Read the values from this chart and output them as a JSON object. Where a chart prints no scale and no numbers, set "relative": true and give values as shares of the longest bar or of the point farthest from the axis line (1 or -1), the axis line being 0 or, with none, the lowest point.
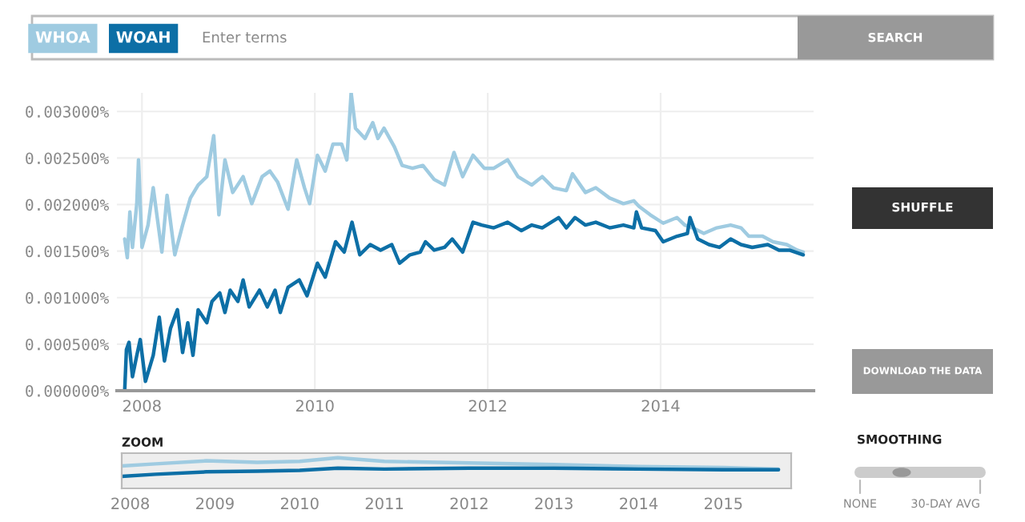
{
  "chart_data": [
    {
      "type": "line",
      "legend": "top left",
      "grid": true,
      "xlim": [
        2007.71,
        2015.77
      ],
      "ylim": [
        0,
        0.0032
      ],
      "xticks": [
        2008,
        2010,
        2012,
        2014
      ],
      "yticks": [
        {
          "value": 0,
          "label": "0.000000%"
        },
        {
          "value": 0.0005,
          "label": "0.000500%"
        },
        {
          "value": 0.001,
          "label": "0.001000%"
        },
        {
          "value": 0.0015,
          "label": "0.001500%"
        },
        {
          "value": 0.002,
          "label": "0.002000%"
        },
        {
          "value": 0.0025,
          "label": "0.002500%"
        },
        {
          "value": 0.003,
          "label": "0.003000%"
        }
      ],
      "annotations": [
        "Enter terms",
        "SEARCH",
        "SHUFFLE",
        "DOWNLOAD THE DATA",
        "SMOOTHING",
        "NONE",
        "30-DAY AVG"
      ],
      "series": [
        {
          "name": "WHOA",
          "color": "#9fcbe1",
          "x": [
            2007.8,
            2007.83,
            2007.86,
            2007.89,
            2007.94,
            2007.96,
            2008.0,
            2008.07,
            2008.13,
            2008.23,
            2008.29,
            2008.38,
            2008.47,
            2008.56,
            2008.65,
            2008.75,
            2008.83,
            2008.89,
            2008.96,
            2009.05,
            2009.17,
            2009.27,
            2009.39,
            2009.48,
            2009.57,
            2009.69,
            2009.79,
            2009.88,
            2009.94,
            2010.03,
            2010.12,
            2010.21,
            2010.31,
            2010.37,
            2010.42,
            2010.47,
            2010.58,
            2010.67,
            2010.73,
            2010.8,
            2010.92,
            2011.01,
            2011.13,
            2011.25,
            2011.38,
            2011.5,
            2011.61,
            2011.71,
            2011.83,
            2011.96,
            2012.07,
            2012.23,
            2012.35,
            2012.51,
            2012.63,
            2012.76,
            2012.91,
            2012.98,
            2013.13,
            2013.25,
            2013.41,
            2013.57,
            2013.69,
            2013.75,
            2013.88,
            2014.03,
            2014.19,
            2014.28,
            2014.37,
            2014.5,
            2014.65,
            2014.81,
            2014.93,
            2015.02,
            2015.18,
            2015.3,
            2015.46,
            2015.58,
            2015.65
          ],
          "values": [
            0.00163,
            0.00143,
            0.00192,
            0.00154,
            0.00201,
            0.00248,
            0.00154,
            0.00178,
            0.00218,
            0.00149,
            0.0021,
            0.00146,
            0.00178,
            0.00207,
            0.00221,
            0.0023,
            0.00274,
            0.00189,
            0.00248,
            0.00213,
            0.0023,
            0.00201,
            0.0023,
            0.00236,
            0.00224,
            0.00195,
            0.00248,
            0.00218,
            0.00201,
            0.00253,
            0.00236,
            0.00265,
            0.00265,
            0.00248,
            0.0032,
            0.00282,
            0.00271,
            0.00288,
            0.00271,
            0.00282,
            0.00262,
            0.00242,
            0.00239,
            0.00242,
            0.00227,
            0.00221,
            0.00256,
            0.0023,
            0.00253,
            0.00239,
            0.00239,
            0.00248,
            0.0023,
            0.00221,
            0.0023,
            0.00218,
            0.00215,
            0.00233,
            0.00213,
            0.00218,
            0.00207,
            0.00201,
            0.00204,
            0.00198,
            0.00189,
            0.0018,
            0.00186,
            0.00178,
            0.00175,
            0.00169,
            0.00175,
            0.00178,
            0.00175,
            0.00166,
            0.00166,
            0.0016,
            0.00157,
            0.00151,
            0.00149
          ]
        },
        {
          "name": "WOAH",
          "color": "#0d6fa6",
          "x": [
            2007.8,
            2007.82,
            2007.85,
            2007.89,
            2007.94,
            2007.98,
            2008.04,
            2008.13,
            2008.2,
            2008.26,
            2008.33,
            2008.41,
            2008.47,
            2008.53,
            2008.59,
            2008.65,
            2008.75,
            2008.81,
            2008.9,
            2008.96,
            2009.02,
            2009.11,
            2009.17,
            2009.24,
            2009.36,
            2009.45,
            2009.54,
            2009.6,
            2009.69,
            2009.82,
            2009.91,
            2010.03,
            2010.12,
            2010.24,
            2010.34,
            2010.43,
            2010.52,
            2010.64,
            2010.76,
            2010.89,
            2010.98,
            2011.1,
            2011.22,
            2011.28,
            2011.38,
            2011.5,
            2011.59,
            2011.71,
            2011.83,
            2011.93,
            2012.07,
            2012.23,
            2012.39,
            2012.51,
            2012.63,
            2012.82,
            2012.91,
            2013.01,
            2013.13,
            2013.25,
            2013.41,
            2013.57,
            2013.69,
            2013.72,
            2013.78,
            2013.94,
            2014.03,
            2014.19,
            2014.31,
            2014.34,
            2014.43,
            2014.56,
            2014.68,
            2014.81,
            2014.93,
            2015.06,
            2015.24,
            2015.37,
            2015.49,
            2015.65
          ],
          "values": [
            0,
            0.00044,
            0.00052,
            0.00015,
            0.00038,
            0.00055,
            0.0001,
            0.00038,
            0.00079,
            0.00032,
            0.00067,
            0.00087,
            0.00041,
            0.00073,
            0.00038,
            0.00087,
            0.00073,
            0.00096,
            0.00105,
            0.00084,
            0.00108,
            0.00096,
            0.00119,
            0.0009,
            0.00108,
            0.0009,
            0.00108,
            0.00084,
            0.00111,
            0.00119,
            0.00102,
            0.00137,
            0.00122,
            0.0016,
            0.00149,
            0.00181,
            0.00146,
            0.00157,
            0.00151,
            0.00157,
            0.00137,
            0.00146,
            0.00149,
            0.0016,
            0.00151,
            0.00154,
            0.00163,
            0.00149,
            0.00181,
            0.00178,
            0.00175,
            0.00181,
            0.00172,
            0.00178,
            0.00175,
            0.00186,
            0.00175,
            0.00186,
            0.00178,
            0.00181,
            0.00175,
            0.00178,
            0.00175,
            0.00192,
            0.00175,
            0.00172,
            0.0016,
            0.00166,
            0.00169,
            0.00186,
            0.00163,
            0.00157,
            0.00154,
            0.00163,
            0.00157,
            0.00154,
            0.00157,
            0.00151,
            0.00151,
            0.00146
          ]
        }
      ]
    },
    {
      "type": "line",
      "title": "ZOOM",
      "relative": true,
      "tick_labels": "x",
      "xlim": [
        2007.9,
        2015.8
      ],
      "xticks": [
        2008,
        2009,
        2010,
        2011,
        2012,
        2013,
        2014,
        2015
      ],
      "series": [
        {
          "color": "#9fcbe1",
          "x": [
            2007.9,
            2008.3,
            2008.9,
            2009.5,
            2010.0,
            2010.45,
            2011.0,
            2012.0,
            2013.0,
            2014.0,
            2015.0,
            2015.65
          ],
          "values": [
            0.73,
            0.8,
            0.9,
            0.85,
            0.88,
            1.0,
            0.88,
            0.83,
            0.78,
            0.71,
            0.68,
            0.63
          ]
        },
        {
          "color": "#0d6fa6",
          "x": [
            2007.9,
            2008.3,
            2008.9,
            2009.5,
            2010.0,
            2010.45,
            2011.0,
            2012.0,
            2013.0,
            2014.0,
            2015.0,
            2015.65
          ],
          "values": [
            0.39,
            0.46,
            0.54,
            0.56,
            0.59,
            0.66,
            0.63,
            0.66,
            0.66,
            0.63,
            0.61,
            0.61
          ]
        }
      ]
    }
  ]
}
